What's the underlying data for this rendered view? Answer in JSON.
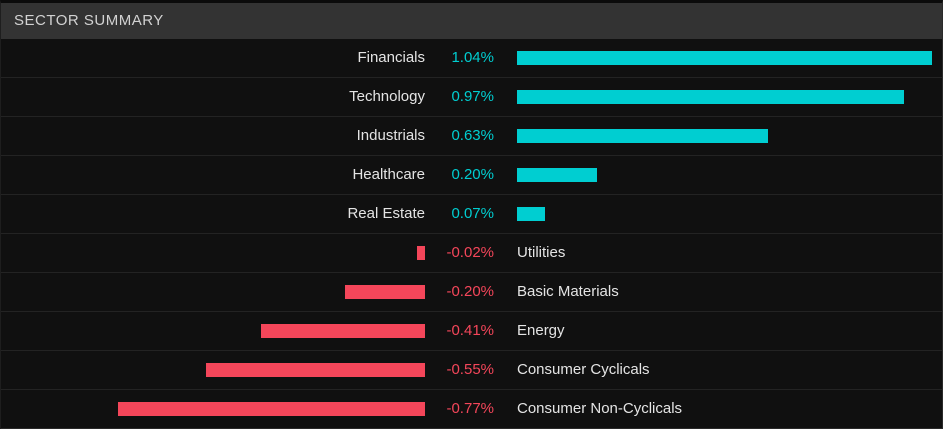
{
  "header": {
    "title": "SECTOR SUMMARY"
  },
  "sectors": [
    {
      "name": "Financials",
      "change": "1.04%",
      "value": 1.04
    },
    {
      "name": "Technology",
      "change": "0.97%",
      "value": 0.97
    },
    {
      "name": "Industrials",
      "change": "0.63%",
      "value": 0.63
    },
    {
      "name": "Healthcare",
      "change": "0.20%",
      "value": 0.2
    },
    {
      "name": "Real Estate",
      "change": "0.07%",
      "value": 0.07
    },
    {
      "name": "Utilities",
      "change": "-0.02%",
      "value": -0.02
    },
    {
      "name": "Basic Materials",
      "change": "-0.20%",
      "value": -0.2
    },
    {
      "name": "Energy",
      "change": "-0.41%",
      "value": -0.41
    },
    {
      "name": "Consumer Cyclicals",
      "change": "-0.55%",
      "value": -0.55
    },
    {
      "name": "Consumer Non-Cyclicals",
      "change": "-0.77%",
      "value": -0.77
    }
  ],
  "colors": {
    "positive": "#00ced1",
    "negative": "#f4465a",
    "header_bg": "#333333",
    "header_text": "#d2d2d2",
    "row_bg": "#101010",
    "label_text": "#e4e4e4",
    "separator": "#232323"
  },
  "chart_data": {
    "type": "bar",
    "orientation": "horizontal",
    "title": "SECTOR SUMMARY",
    "categories": [
      "Financials",
      "Technology",
      "Industrials",
      "Healthcare",
      "Real Estate",
      "Utilities",
      "Basic Materials",
      "Energy",
      "Consumer Cyclicals",
      "Consumer Non-Cyclicals"
    ],
    "values": [
      1.04,
      0.97,
      0.63,
      0.2,
      0.07,
      -0.02,
      -0.2,
      -0.41,
      -0.55,
      -0.77
    ],
    "value_unit": "%",
    "xlim": [
      -1.1,
      1.1
    ],
    "grid": false,
    "legend": "none",
    "positive_color": "#00ced1",
    "negative_color": "#f4465a",
    "layout_note": "diverging bars: positive extend right from center gutter, negative extend left; value labels adjacent to center, category labels on opposite side of bar"
  }
}
